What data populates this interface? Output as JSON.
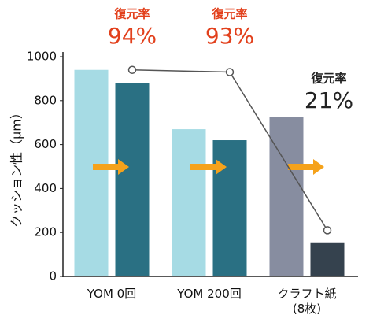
{
  "chart_data": {
    "type": "bar",
    "y_label": "クッション性（μm）",
    "categories": [
      "YOM 0回",
      "YOM 200回",
      "クラフト紙\n(8枚)"
    ],
    "series": [
      {
        "colors": [
          "#a6dbe4",
          "#a6dbe4",
          "#878da0"
        ],
        "values": [
          940,
          670,
          725
        ]
      },
      {
        "colors": [
          "#2a7083",
          "#2a7083",
          "#35424e"
        ],
        "values": [
          880,
          620,
          155
        ]
      }
    ],
    "rate": {
      "type": "line",
      "axis": "y2",
      "label": "復元率",
      "color": "#555555",
      "values": [
        94,
        93,
        21
      ],
      "value_labels": [
        "94%",
        "93%",
        "21%"
      ],
      "label_colors": [
        "#e2401c",
        "#e2401c",
        "#222222"
      ]
    },
    "ylim": [
      0,
      1000
    ],
    "yticks": [
      0,
      200,
      400,
      600,
      800,
      1000
    ],
    "y2lim": [
      0,
      100
    ],
    "grid": false
  }
}
